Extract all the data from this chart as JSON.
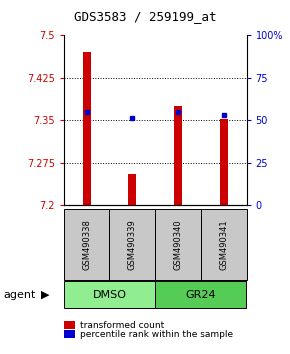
{
  "title": "GDS3583 / 259199_at",
  "samples": [
    "GSM490338",
    "GSM490339",
    "GSM490340",
    "GSM490341"
  ],
  "bar_values": [
    7.47,
    7.255,
    7.375,
    7.352
  ],
  "dot_values": [
    7.364,
    7.355,
    7.365,
    7.36
  ],
  "ylim": [
    7.2,
    7.5
  ],
  "yticks_left": [
    7.2,
    7.275,
    7.35,
    7.425,
    7.5
  ],
  "yticks_right_vals": [
    0,
    25,
    50,
    75,
    100
  ],
  "yticks_right_labels": [
    "0",
    "25",
    "50",
    "75",
    "100%"
  ],
  "bar_color": "#cc0000",
  "dot_color": "#0000cc",
  "groups": [
    {
      "label": "DMSO",
      "samples": [
        0,
        1
      ],
      "color": "#90ee90"
    },
    {
      "label": "GR24",
      "samples": [
        2,
        3
      ],
      "color": "#55cc55"
    }
  ],
  "group_label": "agent",
  "legend_bar_label": "transformed count",
  "legend_dot_label": "percentile rank within the sample",
  "tick_label_color_left": "#cc0000",
  "tick_label_color_right": "#0000cc",
  "bar_width": 0.18
}
